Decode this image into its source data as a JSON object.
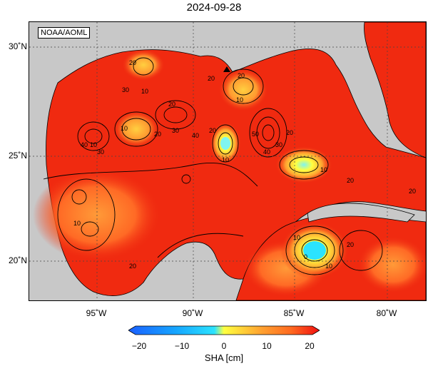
{
  "title": "2024-09-28",
  "credit": "NOAA/AOML",
  "lat_labels": [
    "30˚N",
    "25˚N",
    "20˚N"
  ],
  "lon_labels": [
    "95˚W",
    "90˚W",
    "85˚W",
    "80˚W"
  ],
  "colorbar": {
    "label": "SHA [cm]",
    "ticks": [
      "−20",
      "−10",
      "0",
      "10",
      "20"
    ],
    "colors": [
      "#1a5fff",
      "#16a6ff",
      "#2be3ff",
      "#7ff5f0",
      "#ffff40",
      "#ffd040",
      "#ffa030",
      "#ff6a20",
      "#ff2a10",
      "#f01010"
    ]
  },
  "contour_labels": [
    "20",
    "10",
    "30",
    "20",
    "10",
    "20",
    "30",
    "40",
    "10",
    "20",
    "20",
    "40",
    "30",
    "10",
    "20",
    "50",
    "40",
    "30",
    "20",
    "10",
    "10",
    "20",
    "10",
    "20",
    "10",
    "0",
    "20",
    "20",
    "10"
  ],
  "colors": {
    "land": "#c8c8c8",
    "ocean_high": "#f02a10",
    "coast": "#000000"
  }
}
